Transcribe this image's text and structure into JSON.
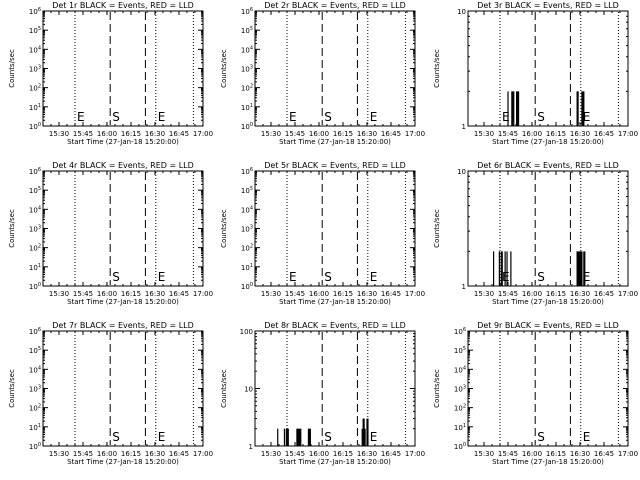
{
  "chart_data": [
    {
      "type": "line",
      "title": "Det 1r BLACK = Events, RED = LLD",
      "xlabel": "Start Time (27-Jan-18 15:20:00)",
      "ylabel": "Counts/sec",
      "xlim": [
        15.3333,
        17.0
      ],
      "xtick_labels": [
        "15:30",
        "15:45",
        "16:00",
        "16:15",
        "16:30",
        "16:45",
        "17:00"
      ],
      "yscale": "log",
      "ylim": [
        1,
        1000000
      ],
      "ytick_labels": [
        "10^0",
        "10^1",
        "10^2",
        "10^3",
        "10^4",
        "10^5",
        "10^6"
      ],
      "markers": [
        {
          "t": 15.6667,
          "style": "dotted",
          "label": "E"
        },
        {
          "t": 16.0333,
          "style": "dashed",
          "label": "S"
        },
        {
          "t": 16.4,
          "style": "dashed",
          "label": ""
        },
        {
          "t": 16.5083,
          "style": "dotted",
          "label": "E"
        },
        {
          "t": 16.9,
          "style": "dotted",
          "label": ""
        }
      ],
      "series": []
    },
    {
      "type": "line",
      "title": "Det 2r BLACK = Events, RED = LLD",
      "xlabel": "Start Time (27-Jan-18 15:20:00)",
      "ylabel": "Counts/sec",
      "xlim": [
        15.3333,
        17.0
      ],
      "xtick_labels": [
        "15:30",
        "15:45",
        "16:00",
        "16:15",
        "16:30",
        "16:45",
        "17:00"
      ],
      "yscale": "log",
      "ylim": [
        1,
        1000000
      ],
      "ytick_labels": [
        "10^0",
        "10^1",
        "10^2",
        "10^3",
        "10^4",
        "10^5",
        "10^6"
      ],
      "markers": [
        {
          "t": 15.6667,
          "style": "dotted",
          "label": "E"
        },
        {
          "t": 16.0333,
          "style": "dashed",
          "label": "S"
        },
        {
          "t": 16.4,
          "style": "dashed",
          "label": ""
        },
        {
          "t": 16.5083,
          "style": "dotted",
          "label": "E"
        },
        {
          "t": 16.9,
          "style": "dotted",
          "label": ""
        }
      ],
      "series": []
    },
    {
      "type": "line",
      "title": "Det 3r BLACK = Events, RED = LLD",
      "xlabel": "Start Time (27-Jan-18 15:20:00)",
      "ylabel": "Counts/sec",
      "xlim": [
        15.3333,
        17.0
      ],
      "xtick_labels": [
        "15:30",
        "15:45",
        "16:00",
        "16:15",
        "16:30",
        "16:45",
        "17:00"
      ],
      "yscale": "log",
      "ylim": [
        1,
        10
      ],
      "ytick_labels": [
        "1",
        "10"
      ],
      "markers": [
        {
          "t": 15.6667,
          "style": "dotted",
          "label": "E"
        },
        {
          "t": 16.0333,
          "style": "dashed",
          "label": "S"
        },
        {
          "t": 16.4,
          "style": "dashed",
          "label": ""
        },
        {
          "t": 16.5083,
          "style": "dotted",
          "label": "E"
        },
        {
          "t": 16.9,
          "style": "dotted",
          "label": ""
        }
      ],
      "series": [
        {
          "color": "#000000",
          "spikes": [
            {
              "t": 15.75,
              "v": 2
            },
            {
              "t": 15.79,
              "v": 2
            },
            {
              "t": 15.8,
              "v": 2
            },
            {
              "t": 15.81,
              "v": 2
            },
            {
              "t": 15.84,
              "v": 2
            },
            {
              "t": 15.85,
              "v": 2
            },
            {
              "t": 15.86,
              "v": 2
            },
            {
              "t": 16.47,
              "v": 2
            },
            {
              "t": 16.48,
              "v": 2
            },
            {
              "t": 16.52,
              "v": 2
            },
            {
              "t": 16.53,
              "v": 2
            },
            {
              "t": 16.54,
              "v": 2
            }
          ]
        }
      ]
    },
    {
      "type": "line",
      "title": "Det 4r BLACK = Events, RED = LLD",
      "xlabel": "Start Time (27-Jan-18 15:20:00)",
      "ylabel": "Counts/sec",
      "xlim": [
        15.3333,
        17.0
      ],
      "xtick_labels": [
        "15:30",
        "15:45",
        "16:00",
        "16:15",
        "16:30",
        "16:45",
        "17:00"
      ],
      "yscale": "log",
      "ylim": [
        1,
        1000000
      ],
      "ytick_labels": [
        "10^0",
        "10^1",
        "10^2",
        "10^3",
        "10^4",
        "10^5",
        "10^6"
      ],
      "markers": [
        {
          "t": 15.6667,
          "style": "dotted",
          "label": ""
        },
        {
          "t": 16.0333,
          "style": "dashed",
          "label": "S"
        },
        {
          "t": 16.4,
          "style": "dashed",
          "label": ""
        },
        {
          "t": 16.5083,
          "style": "dotted",
          "label": "E"
        },
        {
          "t": 16.9,
          "style": "dotted",
          "label": ""
        }
      ],
      "series": []
    },
    {
      "type": "line",
      "title": "Det 5r BLACK = Events, RED = LLD",
      "xlabel": "Start Time (27-Jan-18 15:20:00)",
      "ylabel": "Counts/sec",
      "xlim": [
        15.3333,
        17.0
      ],
      "xtick_labels": [
        "15:30",
        "15:45",
        "16:00",
        "16:15",
        "16:30",
        "16:45",
        "17:00"
      ],
      "yscale": "log",
      "ylim": [
        1,
        1000000
      ],
      "ytick_labels": [
        "10^0",
        "10^1",
        "10^2",
        "10^3",
        "10^4",
        "10^5",
        "10^6"
      ],
      "markers": [
        {
          "t": 15.6667,
          "style": "dotted",
          "label": "E"
        },
        {
          "t": 16.0333,
          "style": "dashed",
          "label": "S"
        },
        {
          "t": 16.4,
          "style": "dashed",
          "label": ""
        },
        {
          "t": 16.5083,
          "style": "dotted",
          "label": "E"
        },
        {
          "t": 16.9,
          "style": "dotted",
          "label": ""
        }
      ],
      "series": []
    },
    {
      "type": "line",
      "title": "Det 6r BLACK = Events, RED = LLD",
      "xlabel": "Start Time (27-Jan-18 15:20:00)",
      "ylabel": "Counts/sec",
      "xlim": [
        15.3333,
        17.0
      ],
      "xtick_labels": [
        "15:30",
        "15:45",
        "16:00",
        "16:15",
        "16:30",
        "16:45",
        "17:00"
      ],
      "yscale": "log",
      "ylim": [
        1,
        10
      ],
      "ytick_labels": [
        "1",
        "10"
      ],
      "markers": [
        {
          "t": 15.6667,
          "style": "dotted",
          "label": "E"
        },
        {
          "t": 16.0333,
          "style": "dashed",
          "label": "S"
        },
        {
          "t": 16.4,
          "style": "dashed",
          "label": ""
        },
        {
          "t": 16.5083,
          "style": "dotted",
          "label": "E"
        },
        {
          "t": 16.9,
          "style": "dotted",
          "label": ""
        }
      ],
      "series": [
        {
          "color": "#000000",
          "spikes": [
            {
              "t": 15.6,
              "v": 2
            },
            {
              "t": 15.66,
              "v": 2
            },
            {
              "t": 15.68,
              "v": 2
            },
            {
              "t": 15.69,
              "v": 2
            },
            {
              "t": 15.72,
              "v": 2
            },
            {
              "t": 15.74,
              "v": 2
            },
            {
              "t": 15.78,
              "v": 2
            },
            {
              "t": 16.47,
              "v": 2
            },
            {
              "t": 16.48,
              "v": 2
            },
            {
              "t": 16.49,
              "v": 2
            },
            {
              "t": 16.5,
              "v": 2
            },
            {
              "t": 16.51,
              "v": 2
            },
            {
              "t": 16.52,
              "v": 2
            },
            {
              "t": 16.54,
              "v": 2
            },
            {
              "t": 16.55,
              "v": 2
            }
          ]
        }
      ]
    },
    {
      "type": "line",
      "title": "Det 7r BLACK = Events, RED = LLD",
      "xlabel": "Start Time (27-Jan-18 15:20:00)",
      "ylabel": "Counts/sec",
      "xlim": [
        15.3333,
        17.0
      ],
      "xtick_labels": [
        "15:30",
        "15:45",
        "16:00",
        "16:15",
        "16:30",
        "16:45",
        "17:00"
      ],
      "yscale": "log",
      "ylim": [
        1,
        1000000
      ],
      "ytick_labels": [
        "10^0",
        "10^1",
        "10^2",
        "10^3",
        "10^4",
        "10^5",
        "10^6"
      ],
      "markers": [
        {
          "t": 15.6667,
          "style": "dotted",
          "label": ""
        },
        {
          "t": 16.0333,
          "style": "dashed",
          "label": "S"
        },
        {
          "t": 16.4,
          "style": "dashed",
          "label": ""
        },
        {
          "t": 16.5083,
          "style": "dotted",
          "label": "E"
        },
        {
          "t": 16.9,
          "style": "dotted",
          "label": ""
        }
      ],
      "series": []
    },
    {
      "type": "line",
      "title": "Det 8r BLACK = Events, RED = LLD",
      "xlabel": "Start Time (27-Jan-18 15:20:00)",
      "ylabel": "Counts/sec",
      "xlim": [
        15.3333,
        17.0
      ],
      "xtick_labels": [
        "15:30",
        "15:45",
        "16:00",
        "16:15",
        "16:30",
        "16:45",
        "17:00"
      ],
      "yscale": "log",
      "ylim": [
        1,
        100
      ],
      "ytick_labels": [
        "1",
        "10",
        "100"
      ],
      "markers": [
        {
          "t": 15.6667,
          "style": "dotted",
          "label": ""
        },
        {
          "t": 16.0333,
          "style": "dashed",
          "label": "S"
        },
        {
          "t": 16.4,
          "style": "dashed",
          "label": ""
        },
        {
          "t": 16.5083,
          "style": "dotted",
          "label": "E"
        },
        {
          "t": 16.9,
          "style": "dotted",
          "label": ""
        }
      ],
      "series": [
        {
          "color": "#000000",
          "spikes": [
            {
              "t": 15.57,
              "v": 2
            },
            {
              "t": 15.64,
              "v": 2
            },
            {
              "t": 15.66,
              "v": 2
            },
            {
              "t": 15.67,
              "v": 2
            },
            {
              "t": 15.68,
              "v": 2
            },
            {
              "t": 15.77,
              "v": 2
            },
            {
              "t": 15.78,
              "v": 2
            },
            {
              "t": 15.79,
              "v": 2
            },
            {
              "t": 15.8,
              "v": 2
            },
            {
              "t": 15.81,
              "v": 2
            },
            {
              "t": 15.89,
              "v": 2
            },
            {
              "t": 15.9,
              "v": 2
            },
            {
              "t": 15.91,
              "v": 2
            },
            {
              "t": 16.45,
              "v": 2
            },
            {
              "t": 16.46,
              "v": 3
            },
            {
              "t": 16.47,
              "v": 3
            },
            {
              "t": 16.48,
              "v": 2
            },
            {
              "t": 16.5,
              "v": 3
            },
            {
              "t": 16.51,
              "v": 3
            }
          ]
        }
      ]
    },
    {
      "type": "line",
      "title": "Det 9r BLACK = Events, RED = LLD",
      "xlabel": "Start Time (27-Jan-18 15:20:00)",
      "ylabel": "Counts/sec",
      "xlim": [
        15.3333,
        17.0
      ],
      "xtick_labels": [
        "15:30",
        "15:45",
        "16:00",
        "16:15",
        "16:30",
        "16:45",
        "17:00"
      ],
      "yscale": "log",
      "ylim": [
        1,
        1000000
      ],
      "ytick_labels": [
        "10^0",
        "10^1",
        "10^2",
        "10^3",
        "10^4",
        "10^5",
        "10^6"
      ],
      "markers": [
        {
          "t": 15.6667,
          "style": "dotted",
          "label": ""
        },
        {
          "t": 16.0333,
          "style": "dashed",
          "label": "S"
        },
        {
          "t": 16.4,
          "style": "dashed",
          "label": ""
        },
        {
          "t": 16.5083,
          "style": "dotted",
          "label": "E"
        },
        {
          "t": 16.9,
          "style": "dotted",
          "label": ""
        }
      ],
      "series": []
    }
  ]
}
